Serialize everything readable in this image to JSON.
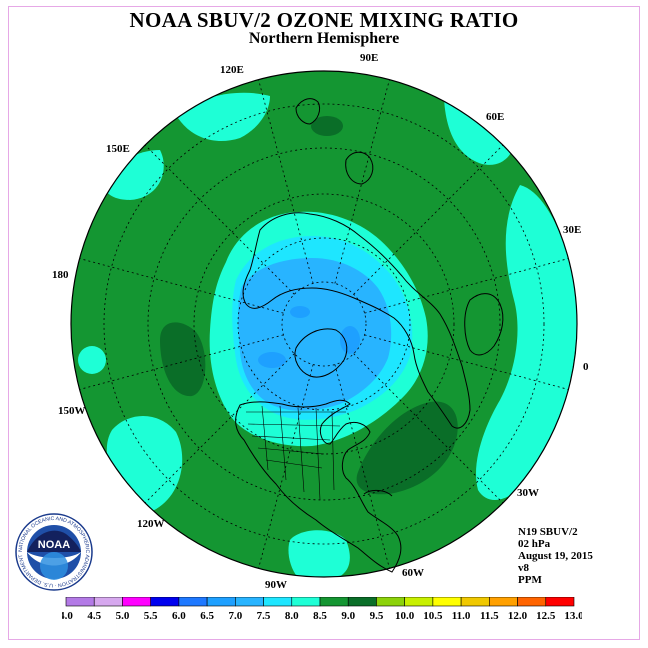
{
  "title": "NOAA SBUV/2 OZONE MIXING RATIO",
  "subtitle": "Northern Hemisphere",
  "longitude_labels": [
    "90E",
    "60E",
    "30E",
    "0",
    "30W",
    "60W",
    "90W",
    "120W",
    "150W",
    "180",
    "150E",
    "120E"
  ],
  "info": {
    "instrument": "N19 SBUV/2",
    "pressure": "02 hPa",
    "date": "August 19, 2015",
    "version": "v8",
    "units": "PPM"
  },
  "logo": {
    "text": "NOAA",
    "ring_text": "NATIONAL OCEANIC AND ATMOSPHERIC ADMINISTRATION · U.S. DEPARTMENT OF COMMERCE"
  },
  "colorbar": {
    "ticks": [
      "4.0",
      "4.5",
      "5.0",
      "5.5",
      "6.0",
      "6.5",
      "7.0",
      "7.5",
      "8.0",
      "8.5",
      "9.0",
      "9.5",
      "10.0",
      "10.5",
      "11.0",
      "11.5",
      "12.0",
      "12.5",
      "13.0"
    ],
    "colors": [
      "#b37ae6",
      "#d6a8ee",
      "#ff00ff",
      "#0000ee",
      "#1e78ff",
      "#1ea0ff",
      "#28b4ff",
      "#1ee6ff",
      "#1effd6",
      "#149632",
      "#0a6e28",
      "#8cd20a",
      "#c8f000",
      "#ffff00",
      "#f0c800",
      "#ffa000",
      "#ff6400",
      "#ff0000",
      "#8c5a28"
    ]
  },
  "colors": {
    "background_field": "#149632",
    "dark_green": "#0a6e28",
    "aqua": "#1effd6",
    "cyan": "#1ee6ff",
    "light_blue": "#28b4ff",
    "blue": "#1ea0ff",
    "frame": "#e6a8e6"
  }
}
